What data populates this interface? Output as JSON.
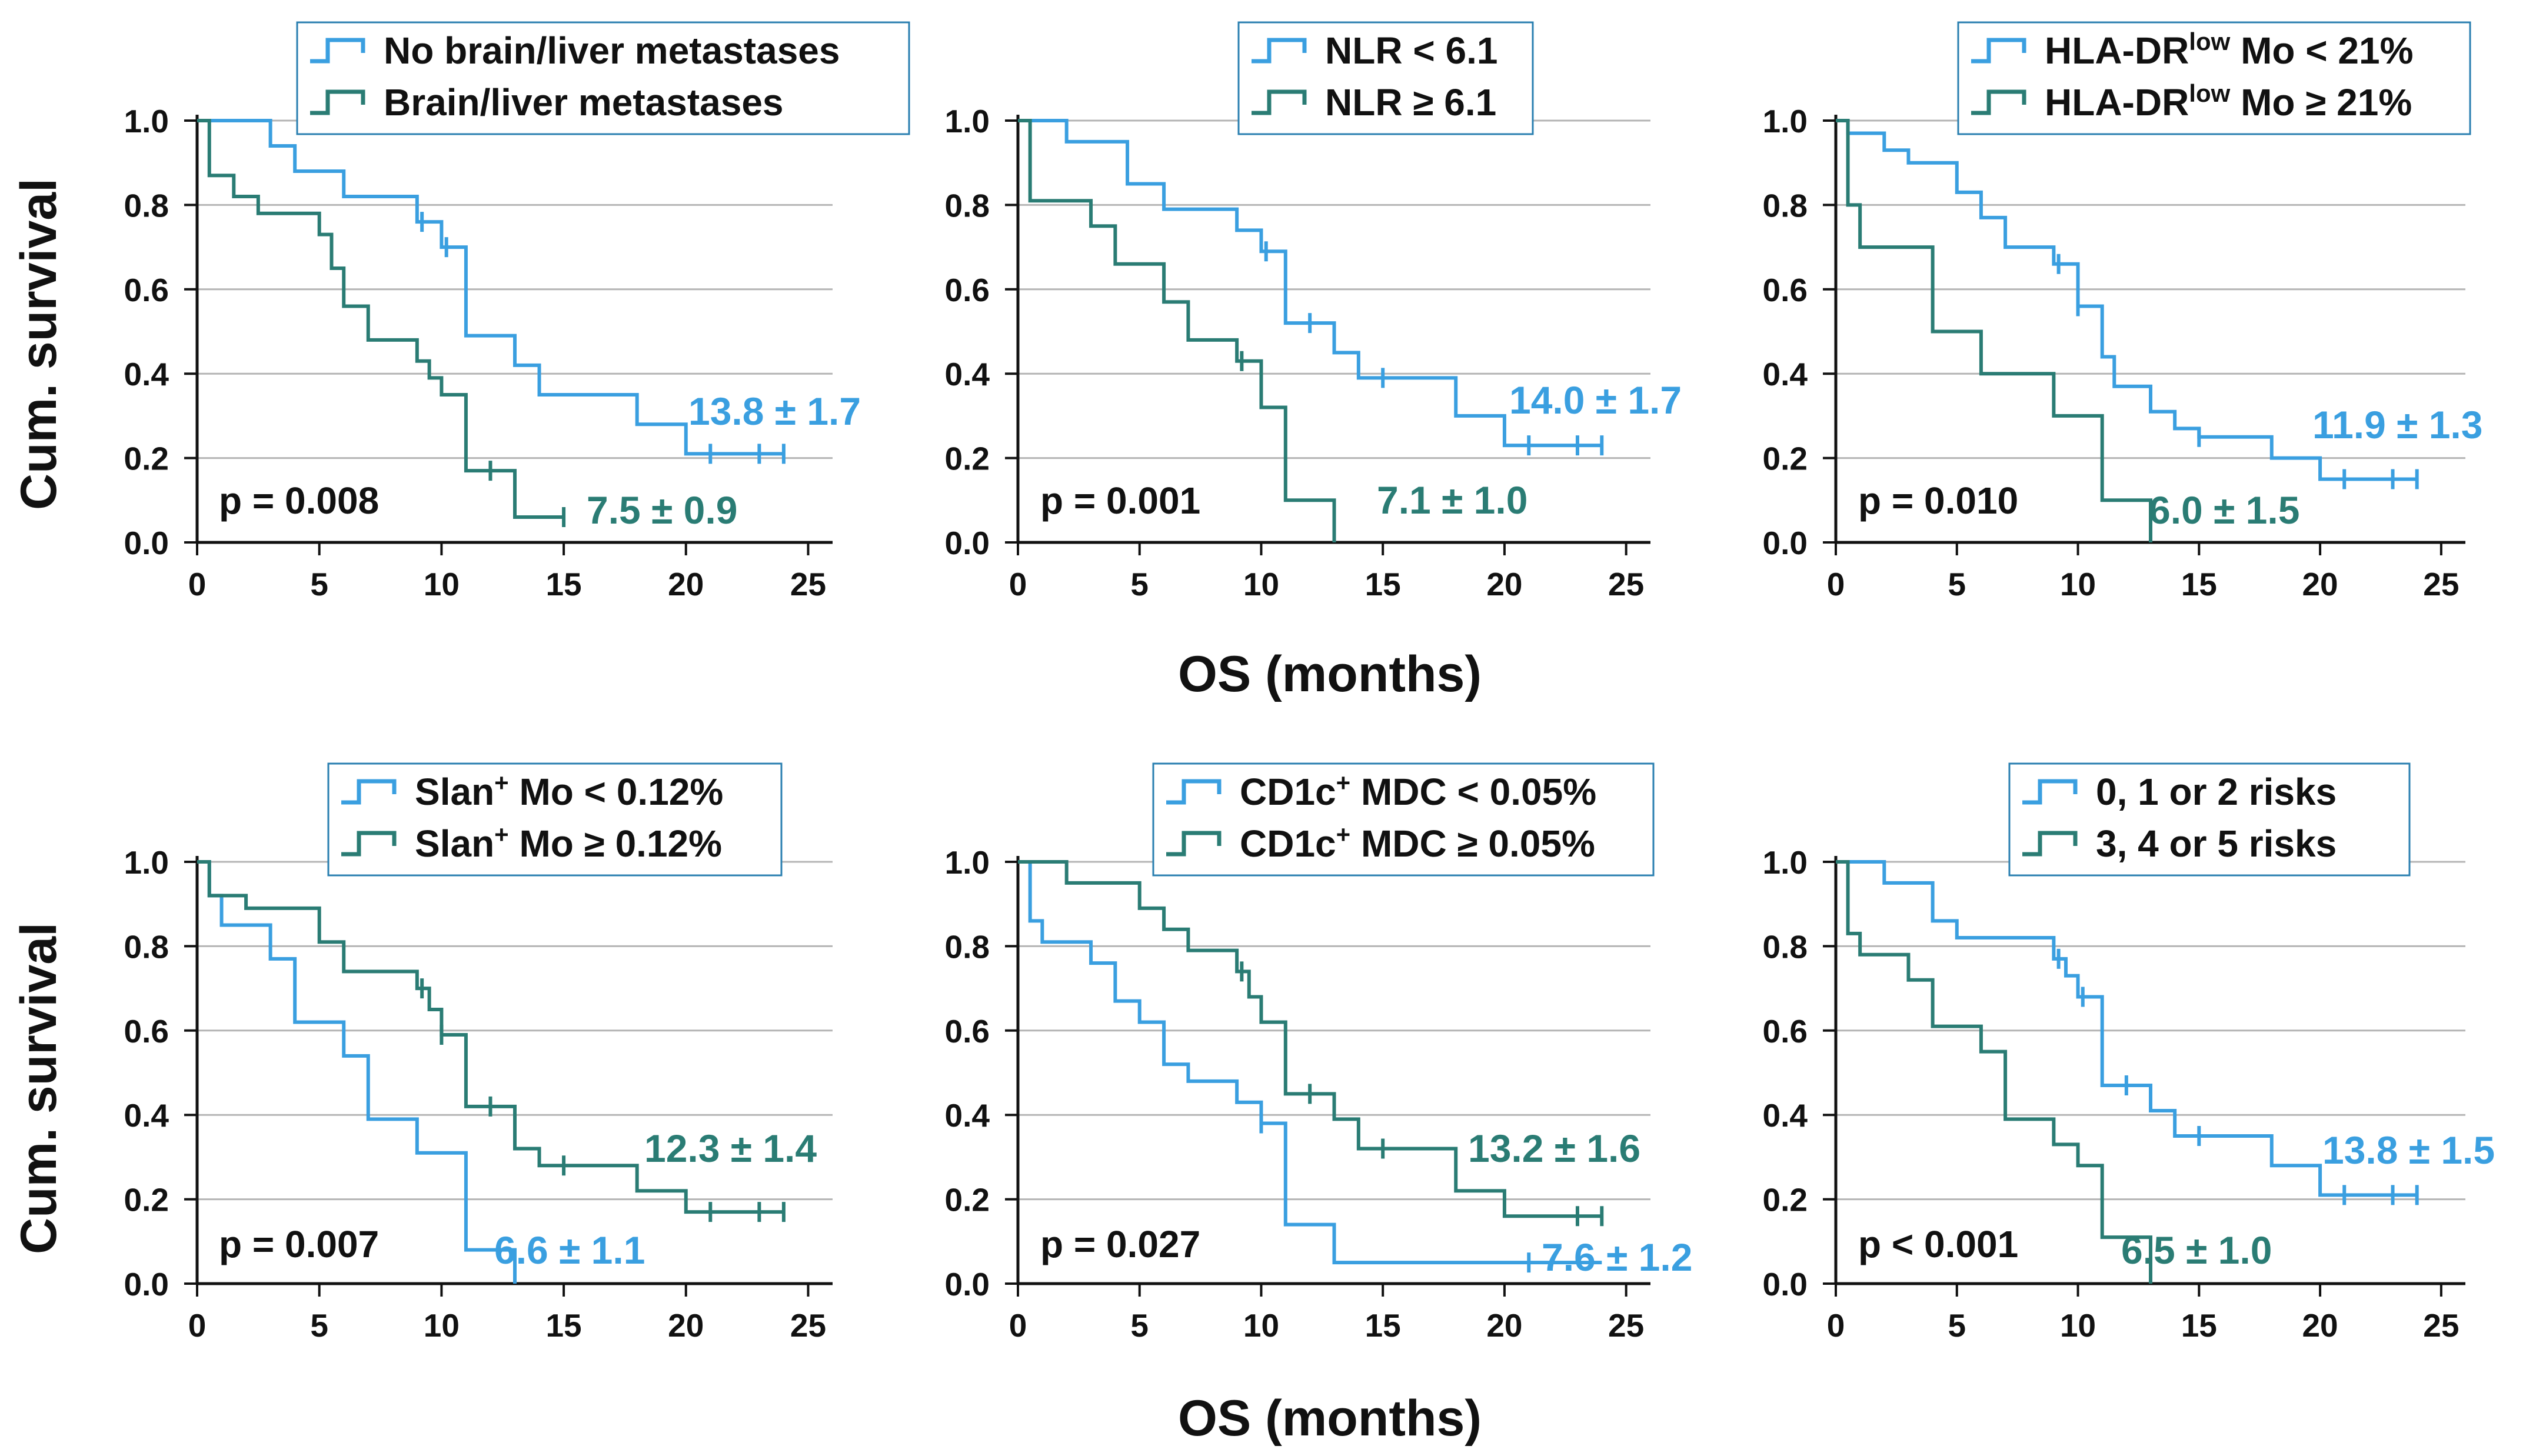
{
  "colors": {
    "light": "#3a9fe0",
    "dark": "#2a7c74",
    "grid": "#b4b4b4",
    "axis": "#111111"
  },
  "axis_titles": {
    "y": "Cum. survival",
    "x": "OS (months)"
  },
  "chart_data": [
    {
      "type": "line",
      "subtype": "kaplan-meier",
      "xlabel": "OS (months)",
      "ylabel": "Cum. survival",
      "xlim": [
        0,
        26
      ],
      "ylim": [
        0,
        1
      ],
      "xticks": [
        "0",
        "5",
        "10",
        "15",
        "20",
        "25"
      ],
      "yticks": [
        "0.0",
        "0.2",
        "0.4",
        "0.6",
        "0.8",
        "1.0"
      ],
      "legend_pos": "top-right",
      "p_value": "p = 0.008",
      "series": [
        {
          "name": "No brain/liver metastases",
          "color": "light",
          "median": "13.8 ± 1.7",
          "legend": "No brain/liver metastases",
          "steps": [
            [
              0,
              1.0
            ],
            [
              3,
              0.94
            ],
            [
              4,
              0.88
            ],
            [
              6,
              0.82
            ],
            [
              9,
              0.76
            ],
            [
              10,
              0.7
            ],
            [
              11,
              0.49
            ],
            [
              13,
              0.42
            ],
            [
              14,
              0.35
            ],
            [
              18,
              0.28
            ],
            [
              20,
              0.21
            ],
            [
              24,
              0.21
            ]
          ],
          "censors": [
            [
              9.2,
              0.76
            ],
            [
              10.2,
              0.7
            ],
            [
              21,
              0.21
            ],
            [
              23,
              0.21
            ],
            [
              24,
              0.21
            ]
          ]
        },
        {
          "name": "Brain/liver metastases",
          "color": "dark",
          "median": "7.5 ± 0.9",
          "legend": "Brain/liver metastases",
          "steps": [
            [
              0,
              1.0
            ],
            [
              0.5,
              0.87
            ],
            [
              1.5,
              0.82
            ],
            [
              2.5,
              0.78
            ],
            [
              5,
              0.73
            ],
            [
              5.5,
              0.65
            ],
            [
              6,
              0.56
            ],
            [
              7,
              0.48
            ],
            [
              9,
              0.43
            ],
            [
              9.5,
              0.39
            ],
            [
              10,
              0.35
            ],
            [
              11,
              0.17
            ],
            [
              13,
              0.06
            ],
            [
              15,
              0.06
            ]
          ],
          "censors": [
            [
              12,
              0.17
            ],
            [
              15,
              0.06
            ]
          ]
        }
      ]
    },
    {
      "type": "line",
      "subtype": "kaplan-meier",
      "xlabel": "OS (months)",
      "ylabel": "Cum. survival",
      "xlim": [
        0,
        26
      ],
      "ylim": [
        0,
        1
      ],
      "xticks": [
        "0",
        "5",
        "10",
        "15",
        "20",
        "25"
      ],
      "yticks": [
        "0.0",
        "0.2",
        "0.4",
        "0.6",
        "0.8",
        "1.0"
      ],
      "legend_pos": "top-right",
      "p_value": "p = 0.001",
      "series": [
        {
          "name": "NLR < 6.1",
          "color": "light",
          "median": "14.0 ± 1.7",
          "legend": "NLR < 6.1",
          "steps": [
            [
              0,
              1.0
            ],
            [
              2,
              0.95
            ],
            [
              4.5,
              0.85
            ],
            [
              6,
              0.79
            ],
            [
              9,
              0.74
            ],
            [
              10,
              0.69
            ],
            [
              11,
              0.52
            ],
            [
              13,
              0.45
            ],
            [
              14,
              0.39
            ],
            [
              18,
              0.3
            ],
            [
              20,
              0.23
            ],
            [
              24,
              0.23
            ]
          ],
          "censors": [
            [
              10.2,
              0.69
            ],
            [
              12,
              0.52
            ],
            [
              15,
              0.39
            ],
            [
              21,
              0.23
            ],
            [
              23,
              0.23
            ],
            [
              24,
              0.23
            ]
          ]
        },
        {
          "name": "NLR ≥ 6.1",
          "color": "dark",
          "median": "7.1 ± 1.0",
          "legend": "NLR ≥ 6.1",
          "steps": [
            [
              0,
              1.0
            ],
            [
              0.5,
              0.81
            ],
            [
              3,
              0.75
            ],
            [
              4,
              0.66
            ],
            [
              6,
              0.57
            ],
            [
              7,
              0.48
            ],
            [
              9,
              0.43
            ],
            [
              10,
              0.32
            ],
            [
              11,
              0.1
            ],
            [
              13,
              0.0
            ]
          ],
          "censors": [
            [
              9.2,
              0.43
            ]
          ]
        }
      ]
    },
    {
      "type": "line",
      "subtype": "kaplan-meier",
      "xlabel": "OS (months)",
      "ylabel": "Cum. survival",
      "xlim": [
        0,
        26
      ],
      "ylim": [
        0,
        1
      ],
      "xticks": [
        "0",
        "5",
        "10",
        "15",
        "20",
        "25"
      ],
      "yticks": [
        "0.0",
        "0.2",
        "0.4",
        "0.6",
        "0.8",
        "1.0"
      ],
      "legend_pos": "top-right",
      "p_value": "p = 0.010",
      "series": [
        {
          "name": "HLA-DRlow Mo < 21%",
          "color": "light",
          "median": "11.9 ± 1.3",
          "legend_parts": [
            "HLA-DR",
            "low",
            " Mo < 21%"
          ],
          "steps": [
            [
              0,
              1.0
            ],
            [
              0.5,
              0.97
            ],
            [
              2,
              0.93
            ],
            [
              3,
              0.9
            ],
            [
              5,
              0.83
            ],
            [
              6,
              0.77
            ],
            [
              7,
              0.7
            ],
            [
              9,
              0.66
            ],
            [
              10,
              0.56
            ],
            [
              11,
              0.44
            ],
            [
              11.5,
              0.37
            ],
            [
              13,
              0.31
            ],
            [
              14,
              0.27
            ],
            [
              15,
              0.25
            ],
            [
              18,
              0.2
            ],
            [
              20,
              0.15
            ],
            [
              24,
              0.15
            ]
          ],
          "censors": [
            [
              9.2,
              0.66
            ],
            [
              10,
              0.56
            ],
            [
              15,
              0.25
            ],
            [
              21,
              0.15
            ],
            [
              23,
              0.15
            ],
            [
              24,
              0.15
            ]
          ]
        },
        {
          "name": "HLA-DRlow Mo ≥ 21%",
          "color": "dark",
          "median": "6.0 ± 1.5",
          "legend_parts": [
            "HLA-DR",
            "low",
            " Mo ≥ 21%"
          ],
          "steps": [
            [
              0,
              1.0
            ],
            [
              0.5,
              0.8
            ],
            [
              1,
              0.7
            ],
            [
              4,
              0.5
            ],
            [
              6,
              0.4
            ],
            [
              9,
              0.3
            ],
            [
              11,
              0.1
            ],
            [
              13,
              0.0
            ]
          ],
          "censors": []
        }
      ]
    },
    {
      "type": "line",
      "subtype": "kaplan-meier",
      "xlabel": "OS (months)",
      "ylabel": "Cum. survival",
      "xlim": [
        0,
        26
      ],
      "ylim": [
        0,
        1
      ],
      "xticks": [
        "0",
        "5",
        "10",
        "15",
        "20",
        "25"
      ],
      "yticks": [
        "0.0",
        "0.2",
        "0.4",
        "0.6",
        "0.8",
        "1.0"
      ],
      "legend_pos": "top-right",
      "p_value": "p = 0.007",
      "series": [
        {
          "name": "Slan+ Mo < 0.12%",
          "color": "light",
          "median": "6.6 ± 1.1",
          "legend_parts": [
            "Slan",
            "+",
            " Mo < 0.12%"
          ],
          "steps": [
            [
              0,
              1.0
            ],
            [
              0.5,
              0.92
            ],
            [
              1,
              0.85
            ],
            [
              3,
              0.77
            ],
            [
              4,
              0.62
            ],
            [
              6,
              0.54
            ],
            [
              7,
              0.39
            ],
            [
              9,
              0.31
            ],
            [
              11,
              0.08
            ],
            [
              13,
              0.0
            ]
          ],
          "censors": []
        },
        {
          "name": "Slan+ Mo ≥ 0.12%",
          "color": "dark",
          "median": "12.3 ± 1.4",
          "legend_parts": [
            "Slan",
            "+",
            " Mo ≥ 0.12%"
          ],
          "steps": [
            [
              0,
              1.0
            ],
            [
              0.5,
              0.92
            ],
            [
              2,
              0.89
            ],
            [
              5,
              0.81
            ],
            [
              6,
              0.74
            ],
            [
              9,
              0.7
            ],
            [
              9.5,
              0.65
            ],
            [
              10,
              0.59
            ],
            [
              11,
              0.42
            ],
            [
              13,
              0.32
            ],
            [
              14,
              0.28
            ],
            [
              18,
              0.22
            ],
            [
              20,
              0.17
            ],
            [
              24,
              0.17
            ]
          ],
          "censors": [
            [
              9.2,
              0.7
            ],
            [
              10,
              0.59
            ],
            [
              12,
              0.42
            ],
            [
              15,
              0.28
            ],
            [
              21,
              0.17
            ],
            [
              23,
              0.17
            ],
            [
              24,
              0.17
            ]
          ]
        }
      ]
    },
    {
      "type": "line",
      "subtype": "kaplan-meier",
      "xlabel": "OS (months)",
      "ylabel": "Cum. survival",
      "xlim": [
        0,
        26
      ],
      "ylim": [
        0,
        1
      ],
      "xticks": [
        "0",
        "5",
        "10",
        "15",
        "20",
        "25"
      ],
      "yticks": [
        "0.0",
        "0.2",
        "0.4",
        "0.6",
        "0.8",
        "1.0"
      ],
      "legend_pos": "top-right",
      "p_value": "p = 0.027",
      "series": [
        {
          "name": "CD1c+ MDC < 0.05%",
          "color": "light",
          "median": "7.6 ± 1.2",
          "legend_parts": [
            "CD1c",
            "+",
            " MDC < 0.05%"
          ],
          "steps": [
            [
              0,
              1.0
            ],
            [
              0.5,
              0.86
            ],
            [
              1,
              0.81
            ],
            [
              3,
              0.76
            ],
            [
              4,
              0.67
            ],
            [
              5,
              0.62
            ],
            [
              6,
              0.52
            ],
            [
              7,
              0.48
            ],
            [
              9,
              0.43
            ],
            [
              10,
              0.38
            ],
            [
              11,
              0.14
            ],
            [
              13,
              0.05
            ],
            [
              21,
              0.05
            ],
            [
              24,
              0.05
            ]
          ],
          "censors": [
            [
              10,
              0.38
            ],
            [
              21,
              0.05
            ]
          ]
        },
        {
          "name": "CD1c+ MDC ≥ 0.05%",
          "color": "dark",
          "median": "13.2 ± 1.6",
          "legend_parts": [
            "CD1c",
            "+",
            " MDC ≥ 0.05%"
          ],
          "steps": [
            [
              0,
              1.0
            ],
            [
              2,
              0.95
            ],
            [
              5,
              0.89
            ],
            [
              6,
              0.84
            ],
            [
              7,
              0.79
            ],
            [
              9,
              0.74
            ],
            [
              9.5,
              0.68
            ],
            [
              10,
              0.62
            ],
            [
              11,
              0.45
            ],
            [
              13,
              0.39
            ],
            [
              14,
              0.32
            ],
            [
              18,
              0.22
            ],
            [
              20,
              0.16
            ],
            [
              24,
              0.16
            ]
          ],
          "censors": [
            [
              9.2,
              0.74
            ],
            [
              12,
              0.45
            ],
            [
              15,
              0.32
            ],
            [
              23,
              0.16
            ],
            [
              24,
              0.16
            ]
          ]
        }
      ]
    },
    {
      "type": "line",
      "subtype": "kaplan-meier",
      "xlabel": "OS (months)",
      "ylabel": "Cum. survival",
      "xlim": [
        0,
        26
      ],
      "ylim": [
        0,
        1
      ],
      "xticks": [
        "0",
        "5",
        "10",
        "15",
        "20",
        "25"
      ],
      "yticks": [
        "0.0",
        "0.2",
        "0.4",
        "0.6",
        "0.8",
        "1.0"
      ],
      "legend_pos": "top-right",
      "p_value": "p < 0.001",
      "series": [
        {
          "name": "0, 1 or 2 risks",
          "color": "light",
          "median": "13.8 ± 1.5",
          "legend": "0, 1 or 2 risks",
          "steps": [
            [
              0,
              1.0
            ],
            [
              2,
              0.95
            ],
            [
              4,
              0.86
            ],
            [
              5,
              0.82
            ],
            [
              9,
              0.77
            ],
            [
              9.5,
              0.73
            ],
            [
              10,
              0.68
            ],
            [
              11,
              0.47
            ],
            [
              13,
              0.41
            ],
            [
              14,
              0.35
            ],
            [
              18,
              0.28
            ],
            [
              20,
              0.21
            ],
            [
              24,
              0.21
            ]
          ],
          "censors": [
            [
              9.2,
              0.77
            ],
            [
              10.2,
              0.68
            ],
            [
              12,
              0.47
            ],
            [
              15,
              0.35
            ],
            [
              21,
              0.21
            ],
            [
              23,
              0.21
            ],
            [
              24,
              0.21
            ]
          ]
        },
        {
          "name": "3, 4 or 5 risks",
          "color": "dark",
          "median": "6.5 ± 1.0",
          "legend": "3, 4 or 5 risks",
          "steps": [
            [
              0,
              1.0
            ],
            [
              0.5,
              0.83
            ],
            [
              1,
              0.78
            ],
            [
              3,
              0.72
            ],
            [
              4,
              0.61
            ],
            [
              6,
              0.55
            ],
            [
              7,
              0.39
            ],
            [
              9,
              0.33
            ],
            [
              10,
              0.28
            ],
            [
              11,
              0.11
            ],
            [
              13,
              0.0
            ]
          ],
          "censors": []
        }
      ]
    }
  ]
}
